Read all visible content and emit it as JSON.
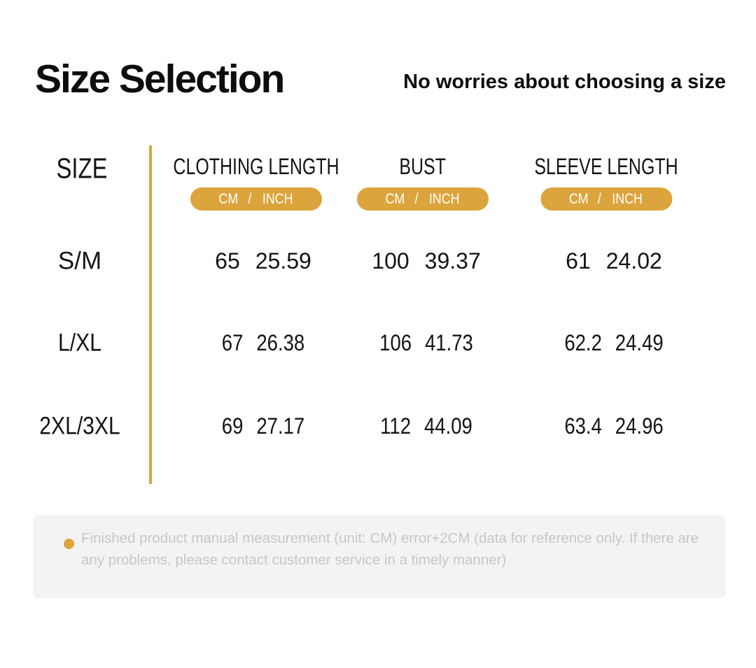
{
  "header": {
    "title": "Size Selection",
    "subtitle": "No worries about choosing a size"
  },
  "table": {
    "size_header": "SIZE",
    "unit_badge": {
      "cm": "CM",
      "separator": "/",
      "inch": "INCH"
    },
    "columns": [
      {
        "label": "CLOTHING LENGTH"
      },
      {
        "label": "BUST"
      },
      {
        "label": "SLEEVE LENGTH"
      }
    ],
    "rows": [
      {
        "size": "S/M",
        "clothing": {
          "cm": "65",
          "inch": "25.59"
        },
        "bust": {
          "cm": "100",
          "inch": "39.37"
        },
        "sleeve": {
          "cm": "61",
          "inch": "24.02"
        }
      },
      {
        "size": "L/XL",
        "clothing": {
          "cm": "67",
          "inch": "26.38"
        },
        "bust": {
          "cm": "106",
          "inch": "41.73"
        },
        "sleeve": {
          "cm": "62.2",
          "inch": "24.49"
        }
      },
      {
        "size": "2XL/3XL",
        "clothing": {
          "cm": "69",
          "inch": "27.17"
        },
        "bust": {
          "cm": "112",
          "inch": "44.09"
        },
        "sleeve": {
          "cm": "63.4",
          "inch": "24.96"
        }
      }
    ]
  },
  "note": {
    "text": "Finished product manual measurement (unit: CM) error+2CM (data for reference only. If there are any problems, please contact customer service in a timely manner)"
  },
  "colors": {
    "accent_gold": "#DCA43C",
    "note_background": "#F3F3F3",
    "note_text_gray": "#C7C7C7",
    "text_black": "#141414"
  },
  "chart_data": {
    "type": "table",
    "title": "Size Selection",
    "subtitle": "No worries about choosing a size",
    "columns": [
      "SIZE",
      "CLOTHING LENGTH (CM)",
      "CLOTHING LENGTH (INCH)",
      "BUST (CM)",
      "BUST (INCH)",
      "SLEEVE LENGTH (CM)",
      "SLEEVE LENGTH (INCH)"
    ],
    "rows": [
      [
        "S/M",
        65,
        25.59,
        100,
        39.37,
        61,
        24.02
      ],
      [
        "L/XL",
        67,
        26.38,
        106,
        41.73,
        62.2,
        24.49
      ],
      [
        "2XL/3XL",
        69,
        27.17,
        112,
        44.09,
        63.4,
        24.96
      ]
    ],
    "units": [
      "CM",
      "INCH"
    ],
    "footnote": "Finished product manual measurement (unit: CM) error+2CM (data for reference only. If there are any problems, please contact customer service in a timely manner)"
  }
}
